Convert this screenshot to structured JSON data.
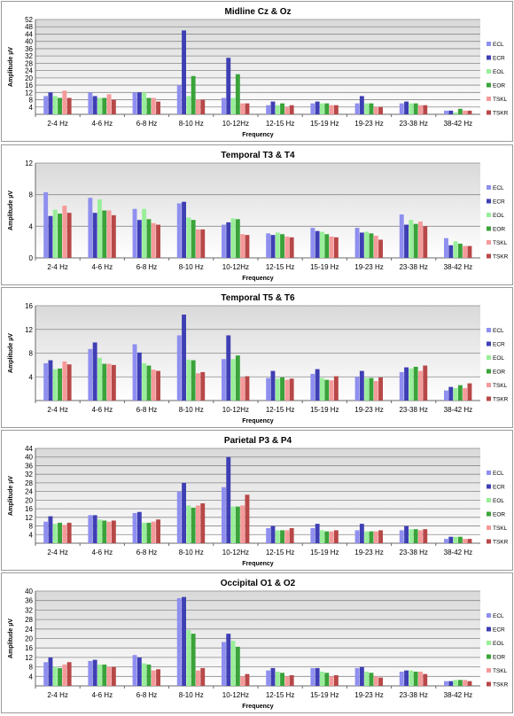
{
  "colors": {
    "ECL": "#8f8fef",
    "ECR": "#3f3fb4",
    "EOL": "#99ee99",
    "EOR": "#3aa33a",
    "TSKL": "#f59a9a",
    "TSKR": "#b84848"
  },
  "chart_data": [
    {
      "type": "bar",
      "title": "Midline Cz & Oz",
      "xlabel": "Frequency",
      "ylabel": "Amplitude µV",
      "ylim": [
        0,
        52
      ],
      "yticks": [
        4,
        8,
        12,
        16,
        20,
        24,
        28,
        32,
        36,
        40,
        44,
        48,
        52
      ],
      "legend_position": "right",
      "categories": [
        "2-4 Hz",
        "4-6 Hz",
        "6-8 Hz",
        "8-10 Hz",
        "10-12Hz",
        "12-15 Hz",
        "15-19 Hz",
        "19-23 Hz",
        "23-38 Hz",
        "38-42 Hz"
      ],
      "series": [
        {
          "name": "ECL",
          "values": [
            10,
            12,
            12,
            16,
            9,
            5,
            6,
            6,
            6,
            2
          ]
        },
        {
          "name": "ECR",
          "values": [
            12,
            10,
            12,
            46,
            31,
            7,
            7,
            10,
            7,
            2
          ]
        },
        {
          "name": "EOL",
          "values": [
            10,
            9,
            12,
            10,
            9,
            5,
            6,
            6,
            6,
            1
          ]
        },
        {
          "name": "EOR",
          "values": [
            9,
            9,
            9,
            21,
            22,
            6,
            6,
            6,
            6,
            3
          ]
        },
        {
          "name": "TSKL",
          "values": [
            13,
            11,
            9,
            8,
            6,
            4,
            5,
            4,
            5,
            2
          ]
        },
        {
          "name": "TSKR",
          "values": [
            9,
            8,
            7,
            8,
            6,
            5,
            5,
            4,
            5,
            2
          ]
        }
      ]
    },
    {
      "type": "bar",
      "title": "Temporal T3 & T4",
      "xlabel": "Frequency",
      "ylabel": "Amplitude µV",
      "ylim": [
        0,
        12
      ],
      "yticks": [
        0,
        4,
        8,
        12
      ],
      "legend_position": "right",
      "categories": [
        "2-4 Hz",
        "4-6 Hz",
        "6-8 Hz",
        "8-10 Hz",
        "10-12Hz",
        "12-15 Hz",
        "15-19 Hz",
        "19-23 Hz",
        "23-38 Hz",
        "38-42 Hz"
      ],
      "series": [
        {
          "name": "ECL",
          "values": [
            8.3,
            7.6,
            6.2,
            6.9,
            4.2,
            3.1,
            3.8,
            3.8,
            5.5,
            2.5
          ]
        },
        {
          "name": "ECR",
          "values": [
            5.3,
            5.7,
            4.8,
            7.1,
            4.5,
            2.9,
            3.4,
            3.2,
            4.2,
            1.6
          ]
        },
        {
          "name": "EOL",
          "values": [
            6.1,
            7.4,
            6.2,
            5.1,
            5.0,
            3.2,
            3.3,
            3.3,
            4.8,
            2.1
          ]
        },
        {
          "name": "EOR",
          "values": [
            5.6,
            6.0,
            4.9,
            4.8,
            4.9,
            3.0,
            3.0,
            3.1,
            4.3,
            1.8
          ]
        },
        {
          "name": "TSKL",
          "values": [
            6.6,
            6.0,
            4.4,
            3.6,
            3.0,
            2.7,
            2.7,
            2.8,
            4.6,
            1.5
          ]
        },
        {
          "name": "TSKR",
          "values": [
            5.7,
            5.4,
            4.2,
            3.6,
            2.9,
            2.6,
            2.6,
            2.3,
            4.0,
            1.5
          ]
        }
      ]
    },
    {
      "type": "bar",
      "title": "Temporal T5 & T6",
      "xlabel": "Frequency",
      "ylabel": "Amplitude µV",
      "ylim": [
        0,
        16
      ],
      "yticks": [
        4,
        8,
        12,
        16
      ],
      "legend_position": "right",
      "categories": [
        "2-4 Hz",
        "4-6 Hz",
        "6-8 Hz",
        "8-10 Hz",
        "10-12Hz",
        "12-15 Hz",
        "15-19 Hz",
        "19-23 Hz",
        "23-38 Hz",
        "38-42 Hz"
      ],
      "series": [
        {
          "name": "ECL",
          "values": [
            6.3,
            8.7,
            9.5,
            11.0,
            7.0,
            3.8,
            4.5,
            4.0,
            4.8,
            1.7
          ]
        },
        {
          "name": "ECR",
          "values": [
            6.8,
            9.8,
            8.1,
            14.5,
            11.0,
            5.0,
            5.3,
            5.0,
            5.6,
            2.3
          ]
        },
        {
          "name": "EOL",
          "values": [
            5.3,
            7.2,
            6.3,
            6.9,
            7.0,
            3.7,
            3.8,
            3.8,
            5.4,
            2.1
          ]
        },
        {
          "name": "EOR",
          "values": [
            5.4,
            6.2,
            5.9,
            6.8,
            7.6,
            3.9,
            3.5,
            3.8,
            5.7,
            2.6
          ]
        },
        {
          "name": "TSKL",
          "values": [
            6.6,
            6.2,
            5.2,
            4.6,
            3.9,
            3.5,
            3.4,
            3.3,
            5.0,
            2.1
          ]
        },
        {
          "name": "TSKR",
          "values": [
            6.1,
            6.0,
            5.0,
            4.8,
            4.1,
            3.7,
            4.1,
            3.9,
            5.9,
            2.9
          ]
        }
      ]
    },
    {
      "type": "bar",
      "title": "Parietal P3 & P4",
      "xlabel": "Frequency",
      "ylabel": "Amplitude µV",
      "ylim": [
        0,
        44
      ],
      "yticks": [
        4,
        8,
        12,
        16,
        20,
        24,
        28,
        32,
        36,
        40,
        44
      ],
      "legend_position": "right",
      "categories": [
        "2-4 Hz",
        "4-6 Hz",
        "6-8 Hz",
        "8-10 Hz",
        "10-12Hz",
        "12-15 Hz",
        "15-19 Hz",
        "19-23 Hz",
        "23-38 Hz",
        "38-42 Hz"
      ],
      "series": [
        {
          "name": "ECL",
          "values": [
            10,
            13,
            14,
            24,
            26,
            7,
            7,
            6,
            6,
            2
          ]
        },
        {
          "name": "ECR",
          "values": [
            12.5,
            13,
            14.5,
            28,
            40,
            8,
            9,
            9,
            8,
            3
          ]
        },
        {
          "name": "EOL",
          "values": [
            9,
            11,
            9.5,
            17.5,
            17,
            6,
            6,
            5.5,
            6.5,
            3
          ]
        },
        {
          "name": "EOR",
          "values": [
            9.5,
            10.5,
            9.5,
            16.5,
            17,
            6,
            5.5,
            5.5,
            6.5,
            3
          ]
        },
        {
          "name": "TSKL",
          "values": [
            8.5,
            10,
            10,
            17.5,
            17.5,
            6,
            5.5,
            5.5,
            6,
            2
          ]
        },
        {
          "name": "TSKR",
          "values": [
            9.5,
            10.5,
            11,
            18.5,
            22.5,
            7,
            6,
            6,
            6.5,
            2
          ]
        }
      ]
    },
    {
      "type": "bar",
      "title": "Occipital O1 & O2",
      "xlabel": "Frequency",
      "ylabel": "Amplitude µV",
      "ylim": [
        0,
        40
      ],
      "yticks": [
        4,
        8,
        12,
        16,
        20,
        24,
        28,
        32,
        36,
        40
      ],
      "legend_position": "right",
      "categories": [
        "2-4 Hz",
        "4-6 Hz",
        "6-8 Hz",
        "8-10 Hz",
        "10-12Hz",
        "12-15 Hz",
        "15-19 Hz",
        "19-23 Hz",
        "23-38 Hz",
        "38-42 Hz"
      ],
      "series": [
        {
          "name": "ECL",
          "values": [
            10,
            10.5,
            13,
            37,
            18.5,
            6.5,
            7.5,
            7.5,
            6,
            2
          ]
        },
        {
          "name": "ECR",
          "values": [
            12,
            11,
            12,
            37.5,
            22,
            7.5,
            7.5,
            8,
            6.5,
            2
          ]
        },
        {
          "name": "EOL",
          "values": [
            8,
            9,
            9.5,
            23.5,
            19,
            6,
            6,
            6,
            6.5,
            2.5
          ]
        },
        {
          "name": "EOR",
          "values": [
            7.5,
            9,
            9,
            22,
            16.5,
            5.5,
            5.5,
            5.5,
            6,
            2.5
          ]
        },
        {
          "name": "TSKL",
          "values": [
            9,
            8,
            6.5,
            6.5,
            4,
            4,
            4,
            4,
            6,
            2.5
          ]
        },
        {
          "name": "TSKR",
          "values": [
            10,
            8,
            7,
            7.5,
            5,
            4.5,
            4.5,
            3.5,
            5,
            2
          ]
        }
      ]
    }
  ]
}
